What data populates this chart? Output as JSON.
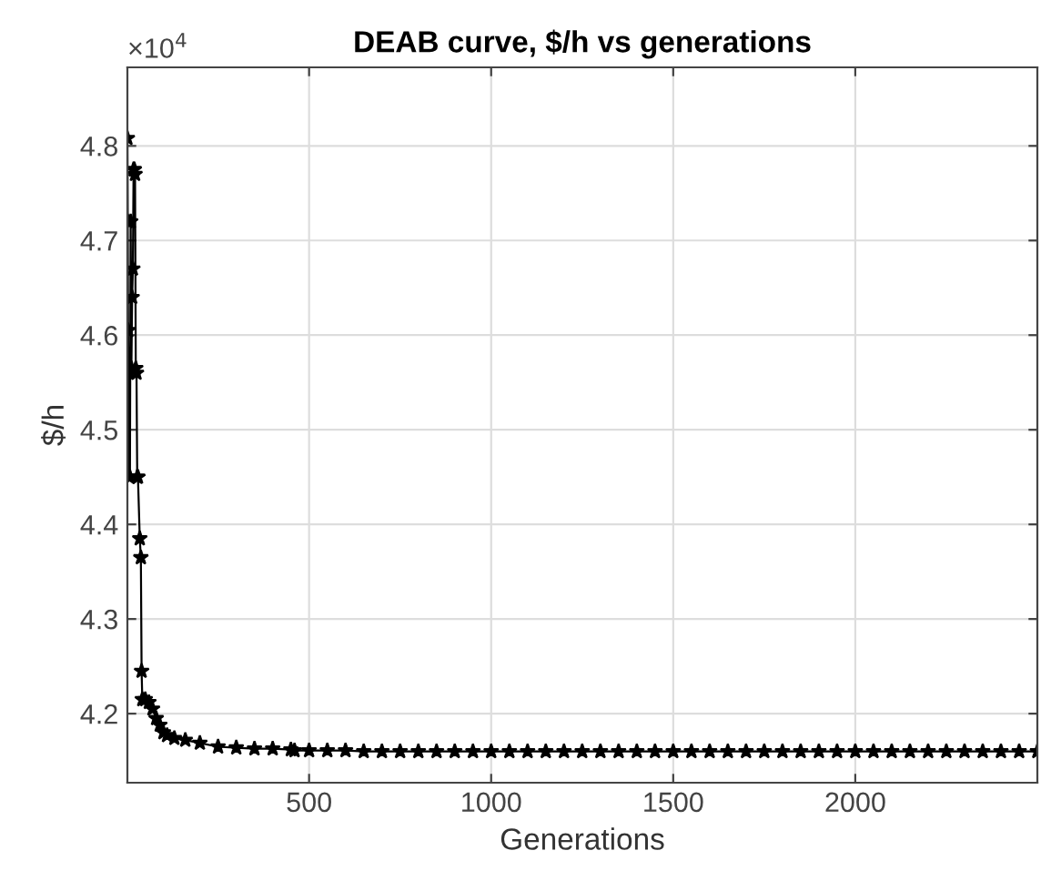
{
  "chart_data": {
    "type": "line",
    "title": "DEAB curve, $/h vs generations",
    "xlabel": "Generations",
    "ylabel": "$/h",
    "annotations": [
      "×10$^{4}$"
    ],
    "xlim": [
      1,
      2500
    ],
    "xticks": [
      500,
      1000,
      1500,
      2000
    ],
    "ylim": [
      4.127,
      4.883
    ],
    "yticks": [
      4.2,
      4.3,
      4.4,
      4.5,
      4.6,
      4.7,
      4.8
    ],
    "grid": true,
    "marker": "star",
    "line_style": "solid",
    "series": [
      {
        "color": "#000000",
        "x": [
          1,
          2,
          3,
          4,
          5,
          6,
          8,
          10,
          12,
          14,
          16,
          18,
          20,
          22,
          24,
          26,
          28,
          30,
          35,
          38,
          40,
          42,
          50,
          60,
          70,
          80,
          90,
          100,
          110,
          130,
          160,
          200,
          250,
          300,
          350,
          400,
          450,
          460,
          500,
          550,
          600,
          650,
          700,
          750,
          800,
          850,
          900,
          950,
          1000,
          1050,
          1100,
          1150,
          1200,
          1250,
          1300,
          1350,
          1400,
          1450,
          1500,
          1550,
          1600,
          1650,
          1700,
          1750,
          1800,
          1850,
          1900,
          1950,
          2000,
          2050,
          2100,
          2150,
          2200,
          2250,
          2300,
          2350,
          2400,
          2450,
          2500
        ],
        "values": [
          4.808,
          4.72,
          4.605,
          4.562,
          4.56,
          4.45,
          4.45,
          4.72,
          4.565,
          4.64,
          4.67,
          4.775,
          4.775,
          4.77,
          4.565,
          4.56,
          4.45,
          4.45,
          4.385,
          4.365,
          4.245,
          4.215,
          4.215,
          4.212,
          4.205,
          4.195,
          4.188,
          4.18,
          4.177,
          4.174,
          4.172,
          4.169,
          4.165,
          4.164,
          4.163,
          4.163,
          4.162,
          4.161,
          4.161,
          4.161,
          4.161,
          4.16,
          4.16,
          4.16,
          4.16,
          4.16,
          4.16,
          4.16,
          4.16,
          4.16,
          4.16,
          4.16,
          4.16,
          4.16,
          4.16,
          4.16,
          4.16,
          4.16,
          4.16,
          4.16,
          4.16,
          4.16,
          4.16,
          4.16,
          4.16,
          4.16,
          4.16,
          4.16,
          4.16,
          4.16,
          4.16,
          4.16,
          4.16,
          4.16,
          4.16,
          4.16,
          4.16,
          4.16,
          4.16
        ]
      }
    ]
  }
}
